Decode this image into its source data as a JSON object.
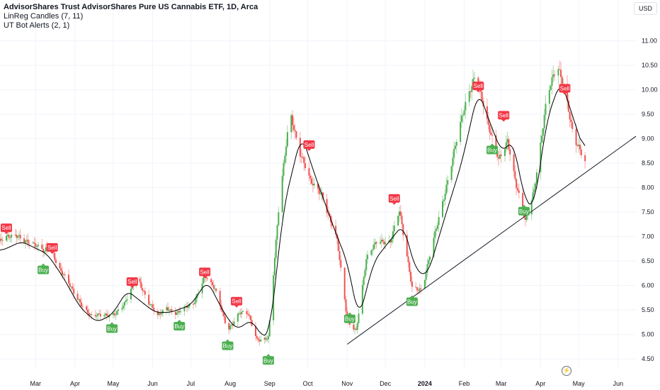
{
  "header": {
    "title": "AdvisorShares Trust AdvisorShares Pure US Cannabis ETF, 1D, Arca",
    "indicator1": "LinReg Candles (7, 11)",
    "indicator2": "UT Bot Alerts (2, 1)",
    "currency": "USD"
  },
  "colors": {
    "up": "#26a69a",
    "up_candle": "#4caf50",
    "down": "#ef5350",
    "buy_label": "#4caf50",
    "sell_label": "#f23645",
    "ma_line": "#000000",
    "trend_line": "#131722"
  },
  "chart_data": {
    "type": "candlestick",
    "y_axis": {
      "ticks": [
        "4.50",
        "5.00",
        "5.50",
        "6.00",
        "6.50",
        "7.00",
        "7.50",
        "8.00",
        "8.50",
        "9.00",
        "9.50",
        "10.00",
        "10.50",
        "11.00"
      ],
      "ylim": [
        4.3,
        11.4
      ]
    },
    "x_axis": {
      "start": "2023-02-01",
      "end": "2024-06-15",
      "ticks": [
        {
          "label": "Mar",
          "date": "2023-03-01"
        },
        {
          "label": "Apr",
          "date": "2023-04-01"
        },
        {
          "label": "May",
          "date": "2023-05-01"
        },
        {
          "label": "Jun",
          "date": "2023-06-01"
        },
        {
          "label": "Jul",
          "date": "2023-07-01"
        },
        {
          "label": "Aug",
          "date": "2023-08-01"
        },
        {
          "label": "Sep",
          "date": "2023-09-01"
        },
        {
          "label": "Oct",
          "date": "2023-10-01"
        },
        {
          "label": "Nov",
          "date": "2023-11-01"
        },
        {
          "label": "Dec",
          "date": "2023-12-01"
        },
        {
          "label": "2024",
          "date": "2024-01-01",
          "bold": true
        },
        {
          "label": "Feb",
          "date": "2024-02-01"
        },
        {
          "label": "Mar",
          "date": "2024-03-01"
        },
        {
          "label": "Apr",
          "date": "2024-04-01"
        },
        {
          "label": "May",
          "date": "2024-05-01"
        },
        {
          "label": "Jun",
          "date": "2024-06-01"
        }
      ]
    },
    "price_path": [
      [
        "2023-02-01",
        6.9
      ],
      [
        "2023-02-15",
        7.05
      ],
      [
        "2023-02-28",
        6.8
      ],
      [
        "2023-03-08",
        6.7
      ],
      [
        "2023-03-12",
        6.95
      ],
      [
        "2023-03-18",
        6.4
      ],
      [
        "2023-03-30",
        5.9
      ],
      [
        "2023-04-14",
        5.35
      ],
      [
        "2023-04-25",
        5.4
      ],
      [
        "2023-05-03",
        5.45
      ],
      [
        "2023-05-10",
        5.6
      ],
      [
        "2023-05-20",
        6.2
      ],
      [
        "2023-05-28",
        5.7
      ],
      [
        "2023-06-05",
        5.35
      ],
      [
        "2023-06-12",
        5.55
      ],
      [
        "2023-06-20",
        5.45
      ],
      [
        "2023-07-03",
        5.6
      ],
      [
        "2023-07-12",
        6.25
      ],
      [
        "2023-07-20",
        5.9
      ],
      [
        "2023-07-30",
        5.1
      ],
      [
        "2023-08-08",
        5.45
      ],
      [
        "2023-08-15",
        5.4
      ],
      [
        "2023-08-22",
        4.9
      ],
      [
        "2023-08-31",
        4.95
      ],
      [
        "2023-09-08",
        7.5
      ],
      [
        "2023-09-17",
        9.6
      ],
      [
        "2023-09-25",
        8.7
      ],
      [
        "2023-10-03",
        8.1
      ],
      [
        "2023-10-12",
        7.9
      ],
      [
        "2023-10-24",
        6.9
      ],
      [
        "2023-11-01",
        5.3
      ],
      [
        "2023-11-08",
        5.1
      ],
      [
        "2023-11-16",
        6.5
      ],
      [
        "2023-11-25",
        6.95
      ],
      [
        "2023-12-05",
        6.9
      ],
      [
        "2023-12-12",
        7.5
      ],
      [
        "2023-12-22",
        6.0
      ],
      [
        "2023-12-30",
        5.9
      ],
      [
        "2024-01-12",
        7.4
      ],
      [
        "2024-01-22",
        8.5
      ],
      [
        "2024-02-02",
        9.7
      ],
      [
        "2024-02-10",
        10.4
      ],
      [
        "2024-02-20",
        9.2
      ],
      [
        "2024-02-28",
        8.6
      ],
      [
        "2024-03-06",
        9.0
      ],
      [
        "2024-03-13",
        8.0
      ],
      [
        "2024-03-20",
        7.3
      ],
      [
        "2024-03-27",
        8.0
      ],
      [
        "2024-04-06",
        9.8
      ],
      [
        "2024-04-14",
        10.5
      ],
      [
        "2024-04-20",
        10.1
      ],
      [
        "2024-04-27",
        9.0
      ],
      [
        "2024-05-06",
        8.5
      ]
    ],
    "moving_average": [
      [
        "2023-02-01",
        6.7
      ],
      [
        "2023-02-18",
        6.9
      ],
      [
        "2023-03-02",
        6.75
      ],
      [
        "2023-03-10",
        6.65
      ],
      [
        "2023-03-22",
        6.2
      ],
      [
        "2023-04-05",
        5.55
      ],
      [
        "2023-04-18",
        5.25
      ],
      [
        "2023-04-30",
        5.4
      ],
      [
        "2023-05-12",
        5.9
      ],
      [
        "2023-05-24",
        5.65
      ],
      [
        "2023-06-03",
        5.45
      ],
      [
        "2023-06-15",
        5.45
      ],
      [
        "2023-07-01",
        5.6
      ],
      [
        "2023-07-14",
        6.1
      ],
      [
        "2023-07-28",
        5.4
      ],
      [
        "2023-08-06",
        5.1
      ],
      [
        "2023-08-18",
        5.3
      ],
      [
        "2023-08-26",
        4.95
      ],
      [
        "2023-09-01",
        5.0
      ],
      [
        "2023-09-12",
        7.6
      ],
      [
        "2023-09-26",
        9.1
      ],
      [
        "2023-10-06",
        8.3
      ],
      [
        "2023-10-24",
        7.0
      ],
      [
        "2023-11-01",
        6.5
      ],
      [
        "2023-11-10",
        5.3
      ],
      [
        "2023-11-22",
        6.5
      ],
      [
        "2023-12-04",
        6.9
      ],
      [
        "2023-12-15",
        7.25
      ],
      [
        "2023-12-25",
        6.3
      ],
      [
        "2024-01-03",
        6.2
      ],
      [
        "2024-01-18",
        7.5
      ],
      [
        "2024-01-30",
        8.5
      ],
      [
        "2024-02-12",
        10.0
      ],
      [
        "2024-02-23",
        9.2
      ],
      [
        "2024-03-02",
        8.7
      ],
      [
        "2024-03-10",
        9.0
      ],
      [
        "2024-03-20",
        7.7
      ],
      [
        "2024-03-27",
        7.6
      ],
      [
        "2024-04-06",
        9.4
      ],
      [
        "2024-04-17",
        10.2
      ],
      [
        "2024-04-27",
        9.4
      ],
      [
        "2024-05-06",
        8.7
      ]
    ],
    "trend_line": [
      [
        "2023-11-01",
        4.8
      ],
      [
        "2024-06-15",
        9.05
      ]
    ],
    "signals": [
      {
        "text": "Sell",
        "type": "sell",
        "date": "2023-02-06",
        "price": 7.05
      },
      {
        "text": "Buy",
        "type": "buy",
        "date": "2023-03-07",
        "price": 6.45
      },
      {
        "text": "Sell",
        "type": "sell",
        "date": "2023-03-14",
        "price": 6.65
      },
      {
        "text": "Sell",
        "type": "sell",
        "date": "2023-05-16",
        "price": 5.95
      },
      {
        "text": "Buy",
        "type": "buy",
        "date": "2023-04-30",
        "price": 5.25
      },
      {
        "text": "Buy",
        "type": "buy",
        "date": "2023-06-22",
        "price": 5.3
      },
      {
        "text": "Sell",
        "type": "sell",
        "date": "2023-07-12",
        "price": 6.15
      },
      {
        "text": "Buy",
        "type": "buy",
        "date": "2023-07-30",
        "price": 4.9
      },
      {
        "text": "Sell",
        "type": "sell",
        "date": "2023-08-06",
        "price": 5.55
      },
      {
        "text": "Buy",
        "type": "buy",
        "date": "2023-08-31",
        "price": 4.6
      },
      {
        "text": "Sell",
        "type": "sell",
        "date": "2023-10-02",
        "price": 8.75
      },
      {
        "text": "Buy",
        "type": "buy",
        "date": "2023-11-03",
        "price": 5.45
      },
      {
        "text": "Sell",
        "type": "sell",
        "date": "2023-12-08",
        "price": 7.65
      },
      {
        "text": "Buy",
        "type": "buy",
        "date": "2023-12-22",
        "price": 5.8
      },
      {
        "text": "Sell",
        "type": "sell",
        "date": "2024-02-12",
        "price": 9.95
      },
      {
        "text": "Buy",
        "type": "buy",
        "date": "2024-02-23",
        "price": 8.9
      },
      {
        "text": "Sell",
        "type": "sell",
        "date": "2024-03-03",
        "price": 9.35
      },
      {
        "text": "Buy",
        "type": "buy",
        "date": "2024-03-19",
        "price": 7.65
      },
      {
        "text": "Sell",
        "type": "sell",
        "date": "2024-04-20",
        "price": 9.9
      }
    ]
  },
  "footer": {
    "icon": "lightning-icon"
  }
}
